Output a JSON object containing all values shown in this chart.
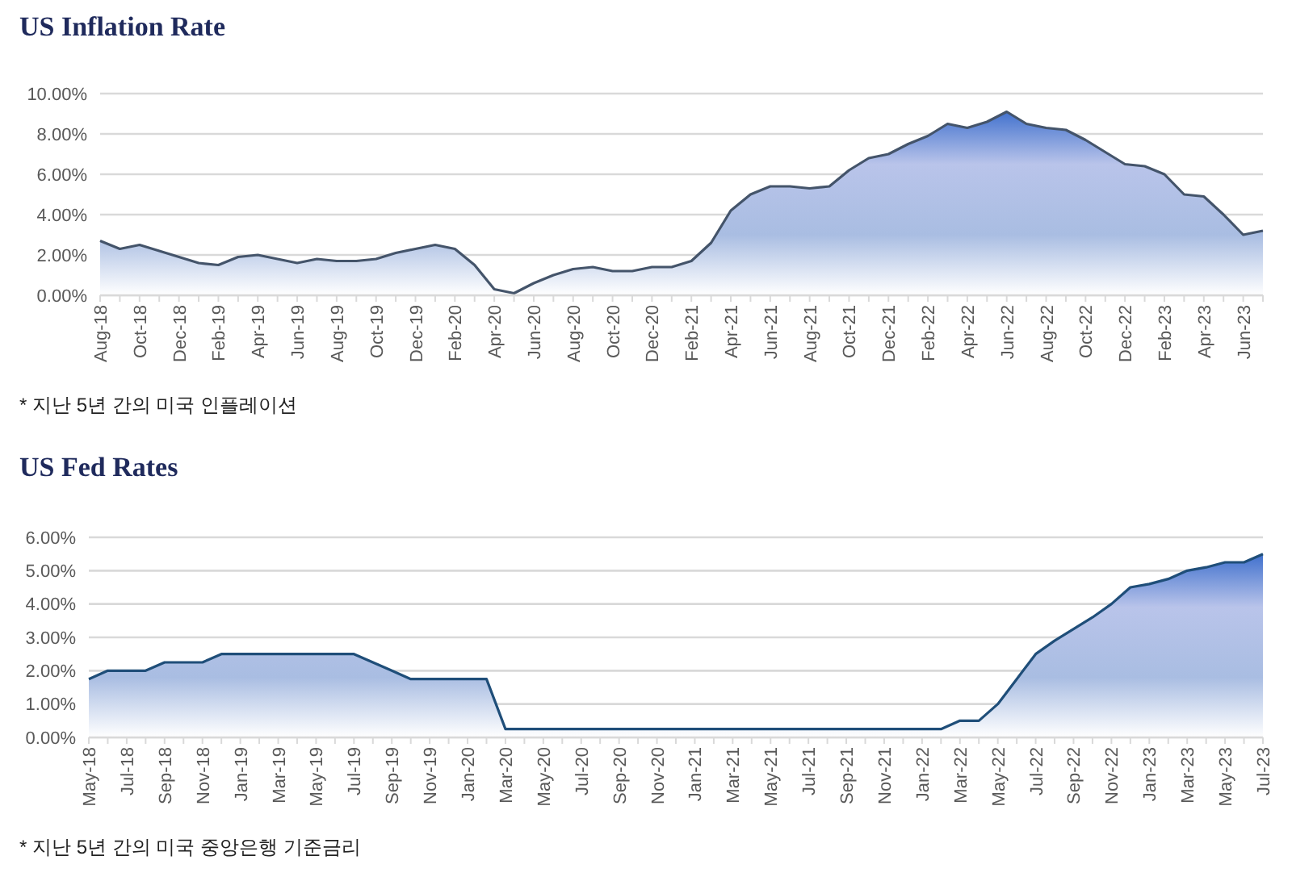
{
  "chart_data": [
    {
      "type": "area",
      "title": "US Inflation Rate",
      "annotations": [
        "* 지난 5년 간의 미국 인플레이션"
      ],
      "categories": [
        "Aug-18",
        null,
        "Oct-18",
        null,
        "Dec-18",
        null,
        "Feb-19",
        null,
        "Apr-19",
        null,
        "Jun-19",
        null,
        "Aug-19",
        null,
        "Oct-19",
        null,
        "Dec-19",
        null,
        "Feb-20",
        null,
        "Apr-20",
        null,
        "Jun-20",
        null,
        "Aug-20",
        null,
        "Oct-20",
        null,
        "Dec-20",
        null,
        "Feb-21",
        null,
        "Apr-21",
        null,
        "Jun-21",
        null,
        "Aug-21",
        null,
        "Oct-21",
        null,
        "Dec-21",
        null,
        "Feb-22",
        null,
        "Apr-22",
        null,
        "Jun-22",
        null,
        "Aug-22",
        null,
        "Oct-22",
        null,
        "Dec-22",
        null,
        "Feb-23",
        null,
        "Apr-23",
        null,
        "Jun-23",
        null
      ],
      "series": [
        {
          "color": "#44546a",
          "values": [
            2.7,
            2.3,
            2.5,
            2.2,
            1.9,
            1.6,
            1.5,
            1.9,
            2.0,
            1.8,
            1.6,
            1.8,
            1.7,
            1.7,
            1.8,
            2.1,
            2.3,
            2.5,
            2.3,
            1.5,
            0.3,
            0.1,
            0.6,
            1.0,
            1.3,
            1.4,
            1.2,
            1.2,
            1.4,
            1.4,
            1.7,
            2.6,
            4.2,
            5.0,
            5.4,
            5.4,
            5.3,
            5.4,
            6.2,
            6.8,
            7.0,
            7.5,
            7.9,
            8.5,
            8.3,
            8.6,
            9.1,
            8.5,
            8.3,
            8.2,
            7.7,
            7.1,
            6.5,
            6.4,
            6.0,
            5.0,
            4.9,
            4.0,
            3.0,
            3.2
          ]
        }
      ],
      "ylim": [
        0,
        10
      ],
      "yticks": [
        {
          "value": 0,
          "label": "0.00%"
        },
        {
          "value": 2,
          "label": "2.00%"
        },
        {
          "value": 4,
          "label": "4.00%"
        },
        {
          "value": 6,
          "label": "6.00%"
        },
        {
          "value": 8,
          "label": "8.00%"
        },
        {
          "value": 10,
          "label": "10.00%"
        }
      ],
      "grid": "y"
    },
    {
      "type": "area",
      "title": "US Fed Rates",
      "annotations": [
        "* 지난 5년 간의 미국 중앙은행 기준금리"
      ],
      "categories": [
        "May-18",
        null,
        "Jul-18",
        null,
        "Sep-18",
        null,
        "Nov-18",
        null,
        "Jan-19",
        null,
        "Mar-19",
        null,
        "May-19",
        null,
        "Jul-19",
        null,
        "Sep-19",
        null,
        "Nov-19",
        null,
        "Jan-20",
        null,
        "Mar-20",
        null,
        "May-20",
        null,
        "Jul-20",
        null,
        "Sep-20",
        null,
        "Nov-20",
        null,
        "Jan-21",
        null,
        "Mar-21",
        null,
        "May-21",
        null,
        "Jul-21",
        null,
        "Sep-21",
        null,
        "Nov-21",
        null,
        "Jan-22",
        null,
        "Mar-22",
        null,
        "May-22",
        null,
        "Jul-22",
        null,
        "Sep-22",
        null,
        "Nov-22",
        null,
        "Jan-23",
        null,
        "Mar-23",
        null,
        "May-23",
        null,
        "Jul-23"
      ],
      "series": [
        {
          "color": "#1f4e79",
          "values": [
            1.75,
            2.0,
            2.0,
            2.0,
            2.25,
            2.25,
            2.25,
            2.5,
            2.5,
            2.5,
            2.5,
            2.5,
            2.5,
            2.5,
            2.5,
            2.25,
            2.0,
            1.75,
            1.75,
            1.75,
            1.75,
            1.75,
            0.25,
            0.25,
            0.25,
            0.25,
            0.25,
            0.25,
            0.25,
            0.25,
            0.25,
            0.25,
            0.25,
            0.25,
            0.25,
            0.25,
            0.25,
            0.25,
            0.25,
            0.25,
            0.25,
            0.25,
            0.25,
            0.25,
            0.25,
            0.25,
            0.5,
            0.5,
            1.0,
            1.75,
            2.5,
            2.9,
            3.25,
            3.6,
            4.0,
            4.5,
            4.6,
            4.75,
            5.0,
            5.1,
            5.25,
            5.25,
            5.5
          ]
        }
      ],
      "ylim": [
        0,
        6
      ],
      "yticks": [
        {
          "value": 0,
          "label": "0.00%"
        },
        {
          "value": 1,
          "label": "1.00%"
        },
        {
          "value": 2,
          "label": "2.00%"
        },
        {
          "value": 3,
          "label": "3.00%"
        },
        {
          "value": 4,
          "label": "4.00%"
        },
        {
          "value": 5,
          "label": "5.00%"
        },
        {
          "value": 6,
          "label": "6.00%"
        }
      ],
      "grid": "y"
    }
  ]
}
